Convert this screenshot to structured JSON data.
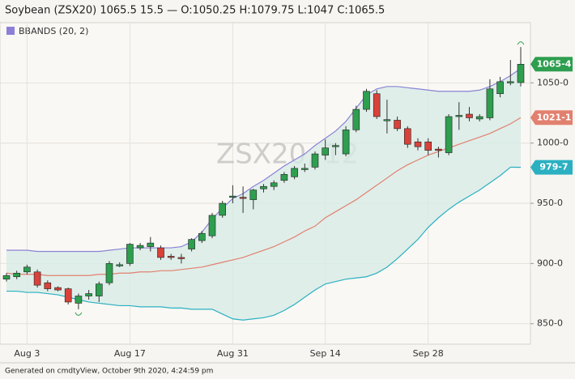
{
  "header": {
    "title": "Soybean (ZSX20) 1065.5 15.5 — O:1050.25 H:1079.75 L:1047 C:1065.5"
  },
  "footer": "Generated on cmdtyView, October 9th 2020, 4:24:59 pm",
  "chart_data": {
    "type": "candlestick",
    "legend": "BBANDS (20, 2)",
    "legend_color": "#8b7fd8",
    "watermark": "ZSX20, 12",
    "categories": [
      null,
      null,
      "Aug 3",
      null,
      null,
      null,
      null,
      null,
      null,
      null,
      null,
      null,
      "Aug 17",
      null,
      null,
      null,
      null,
      null,
      null,
      null,
      null,
      null,
      "Aug 31",
      null,
      null,
      null,
      null,
      null,
      null,
      null,
      null,
      "Sep 14",
      null,
      null,
      null,
      null,
      null,
      null,
      null,
      null,
      null,
      "Sep 28",
      null,
      null,
      null,
      null,
      null,
      null,
      null,
      null,
      null
    ],
    "open": [
      887,
      889,
      893,
      893,
      884,
      880,
      879,
      867,
      873,
      873,
      884,
      898,
      900,
      913,
      914,
      913,
      906,
      905,
      912,
      919,
      923,
      940,
      955,
      955,
      953,
      962,
      964,
      969,
      972,
      978,
      980,
      990,
      997,
      991,
      1011,
      1028,
      1041,
      1019,
      1019,
      1012,
      1001,
      1001,
      995,
      992,
      1022,
      1024,
      1020,
      1021,
      1041,
      1050,
      1050.25
    ],
    "high": [
      892,
      894,
      899,
      895,
      886,
      881,
      880,
      875,
      878,
      885,
      902,
      901,
      917,
      917,
      922,
      915,
      908,
      908,
      921,
      927,
      942,
      952,
      965,
      964,
      962,
      966,
      969,
      976,
      981,
      983,
      993,
      1003,
      1000,
      1014,
      1031,
      1045,
      1044,
      1036,
      1022,
      1014,
      1004,
      1004,
      997,
      1024,
      1034,
      1030,
      1024,
      1053,
      1055,
      1069,
      1079.75
    ],
    "low": [
      885,
      887,
      891,
      880,
      877,
      877,
      866,
      862,
      870,
      868,
      882,
      897,
      898,
      911,
      910,
      903,
      903,
      900,
      910,
      917,
      921,
      938,
      950,
      942,
      945,
      959,
      961,
      967,
      970,
      976,
      978,
      986,
      990,
      989,
      1009,
      1026,
      1020,
      1008,
      1010,
      996,
      994,
      990,
      988,
      990,
      1011,
      1018,
      1018,
      1019,
      1038,
      1048,
      1047
    ],
    "close": [
      890,
      892,
      897,
      882,
      879,
      878,
      868,
      873,
      875,
      883,
      900,
      899,
      916,
      915,
      917,
      905,
      905,
      904,
      920,
      925,
      940,
      950,
      956,
      954,
      961,
      964,
      967,
      974,
      979,
      979,
      991,
      996,
      998,
      1011,
      1028,
      1043,
      1022,
      1019.5,
      1012,
      999,
      997,
      994,
      994,
      1022,
      1023,
      1021,
      1022,
      1045,
      1051,
      1051,
      1065.5
    ],
    "up_color": "#2e9e4f",
    "down_color": "#d9423a",
    "last_label": "1065-4",
    "bands": [
      {
        "color": "#8b83d6",
        "values": [
          911,
          911,
          911,
          910,
          910,
          910,
          910,
          910,
          910,
          910,
          911,
          912,
          913,
          913,
          913,
          913,
          913,
          914,
          918,
          926,
          937,
          946,
          954,
          958,
          964,
          969,
          975,
          981,
          986,
          991,
          998,
          1004,
          1010,
          1018,
          1029,
          1040,
          1045,
          1047,
          1047,
          1046,
          1045,
          1044,
          1043,
          1043,
          1043,
          1043,
          1044,
          1047,
          1051,
          1056,
          1062
        ]
      },
      {
        "color": "#e2806f",
        "values": [
          892,
          891,
          891,
          891,
          890,
          890,
          890,
          890,
          890,
          891,
          891,
          892,
          892,
          893,
          893,
          894,
          894,
          895,
          896,
          897,
          899,
          901,
          903,
          905,
          908,
          911,
          914,
          918,
          922,
          927,
          931,
          938,
          943,
          948,
          953,
          959,
          965,
          971,
          977,
          982,
          986,
          990,
          993,
          996,
          999,
          1002,
          1005,
          1008,
          1012,
          1016,
          1021.125
        ],
        "last_label": "1021-1"
      },
      {
        "color": "#2bb0c2",
        "values": [
          877,
          877,
          876,
          876,
          875,
          874,
          872,
          870,
          868,
          867,
          866,
          865,
          865,
          864,
          864,
          864,
          863,
          863,
          862,
          862,
          862,
          858,
          854,
          853,
          854,
          855,
          857,
          861,
          866,
          872,
          878,
          883,
          885,
          887,
          888,
          889,
          892,
          897,
          904,
          912,
          920,
          930,
          938,
          945,
          951,
          956,
          961,
          967,
          973,
          980,
          979.875
        ],
        "last_label": "979-7"
      }
    ],
    "band_fill": "#d6ebe5",
    "ylim": [
      833,
      1100
    ],
    "yticks": [
      {
        "value": 850,
        "label": "850-0"
      },
      {
        "value": 900,
        "label": "900-0"
      },
      {
        "value": 950,
        "label": "950-0"
      },
      {
        "value": 1000,
        "label": "1000-0"
      },
      {
        "value": 1050,
        "label": "1050-0"
      }
    ],
    "grid": true
  }
}
